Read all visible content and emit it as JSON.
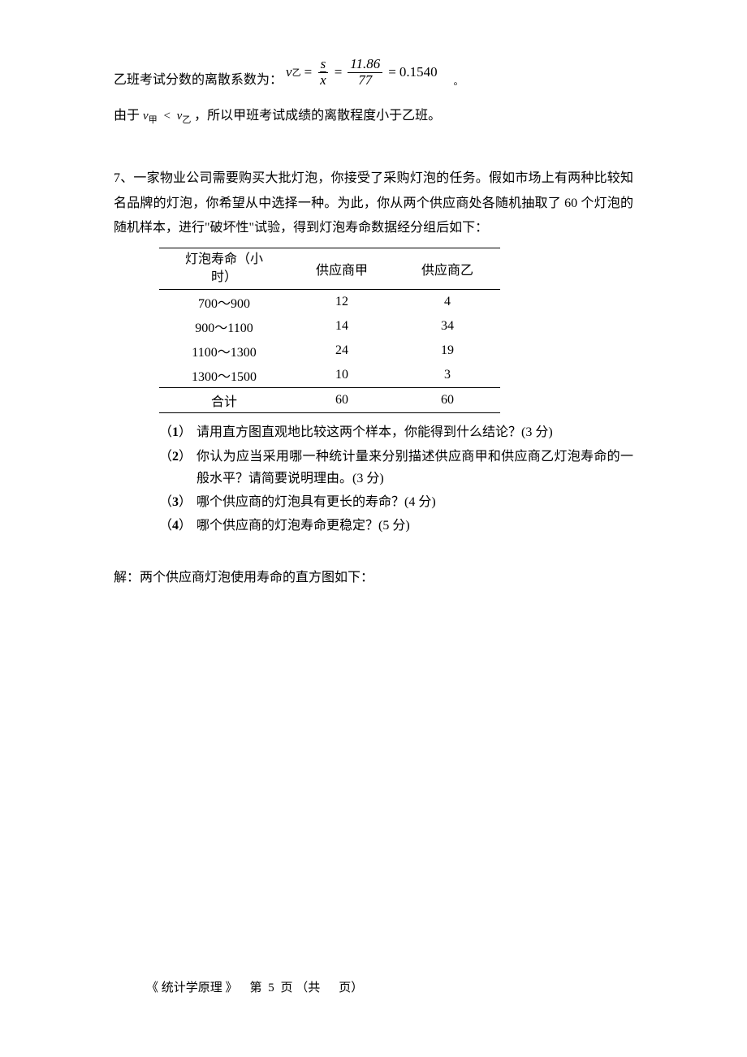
{
  "formula": {
    "label": "乙班考试分数的离散系数为：",
    "var": "v",
    "sub": "乙",
    "frac1_top": "s",
    "frac1_bot": "x",
    "frac2_top": "11.86",
    "frac2_bot": "77",
    "result": "0.1540",
    "tail": "。"
  },
  "conclusion": {
    "prefix": "由于",
    "v1": "v",
    "sub1": "甲",
    "lt": "<",
    "v2": "v",
    "sub2": "乙",
    "suffix": "，所以甲班考试成绩的离散程度小于乙班。"
  },
  "problem": {
    "number": "7、",
    "text": "一家物业公司需要购买大批灯泡，你接受了采购灯泡的任务。假如市场上有两种比较知名品牌的灯泡，你希望从中选择一种。为此，你从两个供应商处各随机抽取了 60 个灯泡的随机样本，进行\"破坏性\"试验，得到灯泡寿命数据经分组后如下："
  },
  "table": {
    "header1_line1": "灯泡寿命（小",
    "header1_line2": "时）",
    "header2": "供应商甲",
    "header3": "供应商乙",
    "rows": [
      {
        "range": "700～900",
        "a": "12",
        "b": "4"
      },
      {
        "range": "900～1100",
        "a": "14",
        "b": "34"
      },
      {
        "range": "1100～1300",
        "a": "24",
        "b": "19"
      },
      {
        "range": "1300～1500",
        "a": "10",
        "b": "3"
      }
    ],
    "footer_label": "合计",
    "footer_a": "60",
    "footer_b": "60"
  },
  "questions": [
    {
      "n": "1",
      "t": "请用直方图直观地比较这两个样本，你能得到什么结论？(3 分)"
    },
    {
      "n": "2",
      "t": "你认为应当采用哪一种统计量来分别描述供应商甲和供应商乙灯泡寿命的一般水平？请简要说明理由。(3 分)"
    },
    {
      "n": "3",
      "t": "哪个供应商的灯泡具有更长的寿命？(4 分)"
    },
    {
      "n": "4",
      "t": "哪个供应商的灯泡寿命更稳定？(5 分)"
    }
  ],
  "solution_intro": "解：两个供应商灯泡使用寿命的直方图如下：",
  "footer": {
    "book": "《 统计学原理 》",
    "prefix": "第",
    "page": "5",
    "mid": "页 （共",
    "suffix": "页）"
  }
}
